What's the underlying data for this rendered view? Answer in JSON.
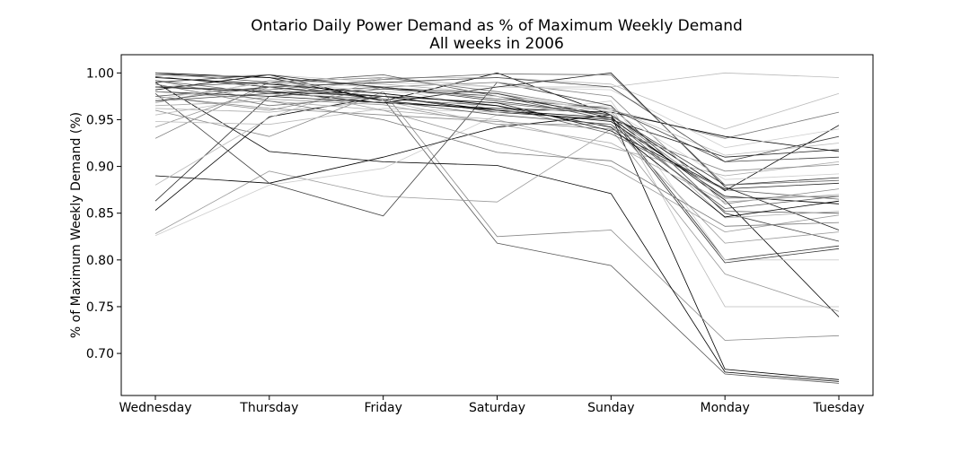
{
  "chart_data": {
    "type": "line",
    "title": "Ontario Daily Power Demand as % of Maximum Weekly Demand",
    "subtitle": "All weeks in 2006",
    "xlabel": "",
    "ylabel": "% of Maximum Weekly Demand (%)",
    "categories": [
      "Wednesday",
      "Thursday",
      "Friday",
      "Saturday",
      "Sunday",
      "Monday",
      "Tuesday"
    ],
    "ylim": [
      0.65,
      1.0
    ],
    "yticks": [
      "0.70",
      "0.75",
      "0.80",
      "0.85",
      "0.90",
      "0.95",
      "1.00"
    ],
    "grid": false,
    "legend": "none",
    "series": [
      {
        "color": "#000000",
        "values": [
          0.982,
          0.998,
          0.97,
          1.0,
          0.955,
          0.683,
          0.672
        ]
      },
      {
        "color": "#555555",
        "values": [
          0.975,
          0.985,
          0.972,
          0.818,
          0.794,
          0.678,
          0.668
        ]
      },
      {
        "color": "#888888",
        "values": [
          0.96,
          0.932,
          0.98,
          0.825,
          0.832,
          0.714,
          0.719
        ]
      },
      {
        "color": "#bbbbbb",
        "values": [
          0.972,
          0.99,
          0.985,
          0.96,
          0.965,
          0.75,
          0.75
        ]
      },
      {
        "color": "#000000",
        "values": [
          0.99,
          0.916,
          0.905,
          0.901,
          0.871,
          0.68,
          0.67
        ]
      },
      {
        "color": "#000000",
        "values": [
          0.853,
          0.953,
          0.975,
          0.96,
          0.952,
          0.864,
          0.739
        ]
      },
      {
        "color": "#333333",
        "values": [
          0.863,
          0.975,
          0.983,
          0.975,
          0.955,
          0.8,
          0.815
        ]
      },
      {
        "color": "#999999",
        "values": [
          0.828,
          0.895,
          0.868,
          0.862,
          0.94,
          0.785,
          0.745
        ]
      },
      {
        "color": "#cccccc",
        "values": [
          0.826,
          0.88,
          0.898,
          0.955,
          0.97,
          0.8,
          0.8
        ]
      },
      {
        "color": "#000000",
        "values": [
          0.89,
          0.882,
          0.91,
          0.942,
          0.955,
          0.874,
          0.944
        ]
      },
      {
        "color": "#444444",
        "values": [
          0.978,
          0.882,
          0.847,
          0.99,
          0.965,
          0.85,
          0.82
        ]
      },
      {
        "color": "#bbbbbb",
        "values": [
          0.88,
          0.952,
          0.995,
          0.985,
          0.985,
          1.0,
          0.995
        ]
      },
      {
        "color": "#777777",
        "values": [
          0.93,
          0.99,
          0.995,
          0.98,
          0.96,
          0.93,
          0.958
        ]
      },
      {
        "color": "#000000",
        "values": [
          0.985,
          0.98,
          0.968,
          0.962,
          0.958,
          0.932,
          0.916
        ]
      },
      {
        "color": "#222222",
        "values": [
          0.996,
          0.985,
          0.975,
          0.958,
          0.95,
          0.91,
          0.918
        ]
      },
      {
        "color": "#666666",
        "values": [
          0.992,
          0.978,
          0.972,
          0.965,
          0.935,
          0.875,
          0.865
        ]
      },
      {
        "color": "#aaaaaa",
        "values": [
          0.965,
          0.97,
          0.96,
          0.95,
          0.92,
          0.89,
          0.905
        ]
      },
      {
        "color": "#333333",
        "values": [
          0.998,
          0.995,
          0.985,
          0.97,
          0.955,
          0.88,
          0.888
        ]
      },
      {
        "color": "#888888",
        "values": [
          0.975,
          0.96,
          0.985,
          0.99,
          0.975,
          0.86,
          0.876
        ]
      },
      {
        "color": "#bbbbbb",
        "values": [
          0.955,
          0.975,
          0.995,
          0.995,
          0.988,
          0.94,
          0.978
        ]
      },
      {
        "color": "#000000",
        "values": [
          1.0,
          0.995,
          0.97,
          0.96,
          0.948,
          0.868,
          0.86
        ]
      },
      {
        "color": "#555555",
        "values": [
          0.985,
          0.99,
          0.998,
          0.975,
          0.95,
          0.852,
          0.85
        ]
      },
      {
        "color": "#999999",
        "values": [
          0.942,
          0.985,
          0.96,
          0.925,
          0.9,
          0.83,
          0.848
        ]
      },
      {
        "color": "#444444",
        "values": [
          0.97,
          0.978,
          0.985,
          0.972,
          0.962,
          0.905,
          0.932
        ]
      },
      {
        "color": "#cccccc",
        "values": [
          0.995,
          0.998,
          0.99,
          0.985,
          0.982,
          0.92,
          0.94
        ]
      },
      {
        "color": "#777777",
        "values": [
          0.988,
          0.965,
          0.975,
          0.968,
          0.955,
          0.866,
          0.868
        ]
      },
      {
        "color": "#222222",
        "values": [
          0.98,
          0.975,
          0.968,
          0.985,
          1.0,
          0.878,
          0.832
        ]
      },
      {
        "color": "#aaaaaa",
        "values": [
          0.968,
          0.992,
          0.988,
          0.978,
          0.958,
          0.845,
          0.852
        ]
      },
      {
        "color": "#666666",
        "values": [
          0.985,
          0.982,
          0.993,
          0.999,
          0.998,
          0.88,
          0.885
        ]
      },
      {
        "color": "#000000",
        "values": [
          0.995,
          0.988,
          0.978,
          0.965,
          0.942,
          0.846,
          0.863
        ]
      },
      {
        "color": "#888888",
        "values": [
          0.975,
          0.962,
          0.955,
          0.948,
          0.94,
          0.895,
          0.902
        ]
      },
      {
        "color": "#333333",
        "values": [
          0.99,
          0.998,
          0.984,
          0.978,
          0.952,
          0.797,
          0.812
        ]
      },
      {
        "color": "#bbbbbb",
        "values": [
          0.948,
          0.945,
          0.962,
          0.958,
          0.962,
          0.912,
          0.925
        ]
      },
      {
        "color": "#555555",
        "values": [
          1.0,
          0.99,
          0.97,
          0.955,
          0.945,
          0.855,
          0.868
        ]
      },
      {
        "color": "#999999",
        "values": [
          0.98,
          0.972,
          0.966,
          0.945,
          0.945,
          0.818,
          0.83
        ]
      },
      {
        "color": "#444444",
        "values": [
          0.97,
          0.985,
          0.99,
          0.995,
          0.985,
          0.905,
          0.91
        ]
      },
      {
        "color": "#777777",
        "values": [
          0.992,
          0.97,
          0.95,
          0.915,
          0.906,
          0.836,
          0.84
        ]
      },
      {
        "color": "#cccccc",
        "values": [
          0.972,
          0.99,
          0.98,
          0.975,
          0.96,
          0.886,
          0.892
        ]
      },
      {
        "color": "#222222",
        "values": [
          0.985,
          0.98,
          0.975,
          0.968,
          0.938,
          0.876,
          0.882
        ]
      },
      {
        "color": "#aaaaaa",
        "values": [
          0.962,
          0.958,
          0.97,
          0.945,
          0.925,
          0.862,
          0.87
        ]
      }
    ]
  }
}
